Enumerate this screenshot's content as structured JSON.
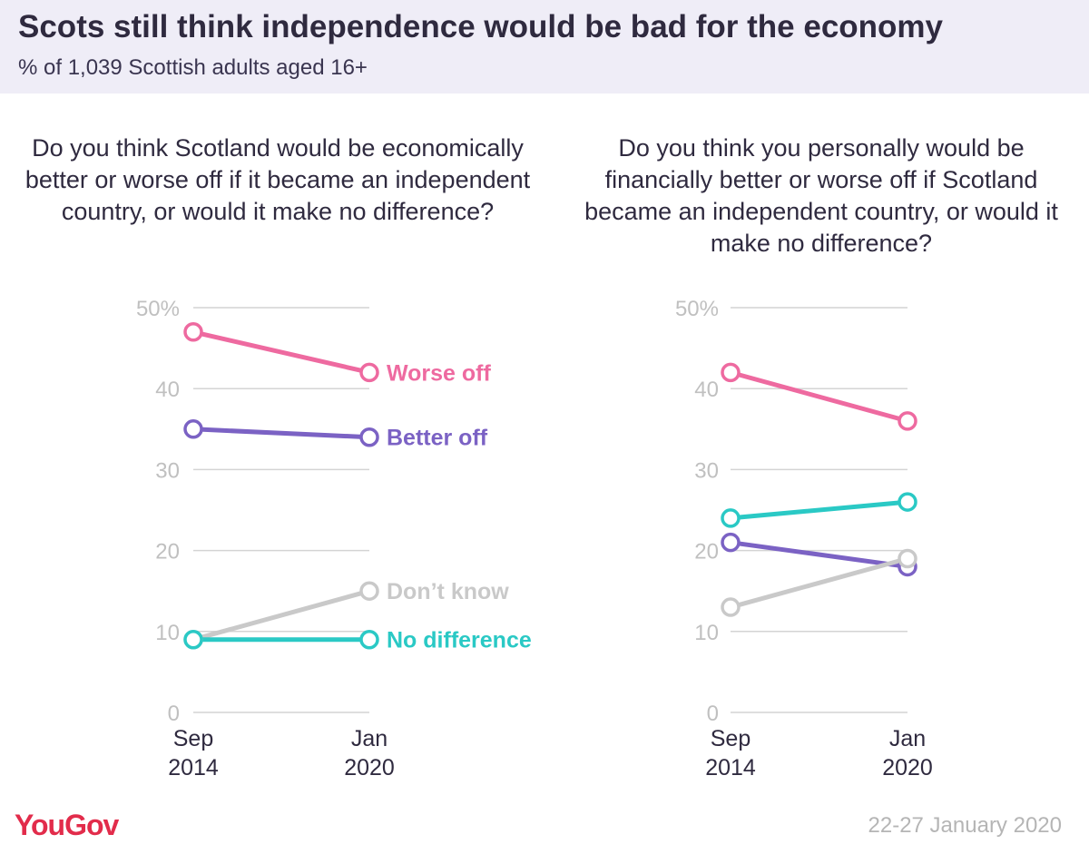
{
  "header": {
    "title": "Scots still think independence would be bad for the economy",
    "subtitle": "% of 1,039 Scottish adults aged 16+"
  },
  "footer": {
    "logo": "YouGov",
    "date": "22-27 January 2020"
  },
  "colors": {
    "worse_off": "#ee6aa0",
    "better_off": "#7b62c4",
    "dont_know": "#c9c9c9",
    "no_difference": "#2ac9c5",
    "grid": "#d4d4d4",
    "tick": "#c0c0c0"
  },
  "chart_data": [
    {
      "type": "line",
      "title": "Do you think Scotland would be economically better or worse off if it became an independent country, or would it make no difference?",
      "x": [
        [
          "Sep",
          "2014"
        ],
        [
          "Jan",
          "2020"
        ]
      ],
      "yticks": [
        "50%",
        "40",
        "30",
        "20",
        "10",
        "0"
      ],
      "ylim": [
        0,
        50
      ],
      "grid": true,
      "series": [
        {
          "name": "Worse off",
          "key": "worse_off",
          "values": [
            47,
            42
          ]
        },
        {
          "name": "Better off",
          "key": "better_off",
          "values": [
            35,
            34
          ]
        },
        {
          "name": "Don’t know",
          "key": "dont_know",
          "values": [
            9,
            15
          ]
        },
        {
          "name": "No difference",
          "key": "no_difference",
          "values": [
            9,
            9
          ]
        }
      ]
    },
    {
      "type": "line",
      "title": "Do you think you personally would be financially better or worse off if Scotland became an independent country, or would it make no difference?",
      "x": [
        [
          "Sep",
          "2014"
        ],
        [
          "Jan",
          "2020"
        ]
      ],
      "yticks": [
        "50%",
        "40",
        "30",
        "20",
        "10",
        "0"
      ],
      "ylim": [
        0,
        50
      ],
      "grid": true,
      "series": [
        {
          "key": "worse_off",
          "values": [
            42,
            36
          ]
        },
        {
          "key": "no_difference",
          "values": [
            24,
            26
          ]
        },
        {
          "key": "better_off",
          "values": [
            21,
            18
          ]
        },
        {
          "key": "dont_know",
          "values": [
            13,
            19
          ]
        }
      ]
    }
  ]
}
